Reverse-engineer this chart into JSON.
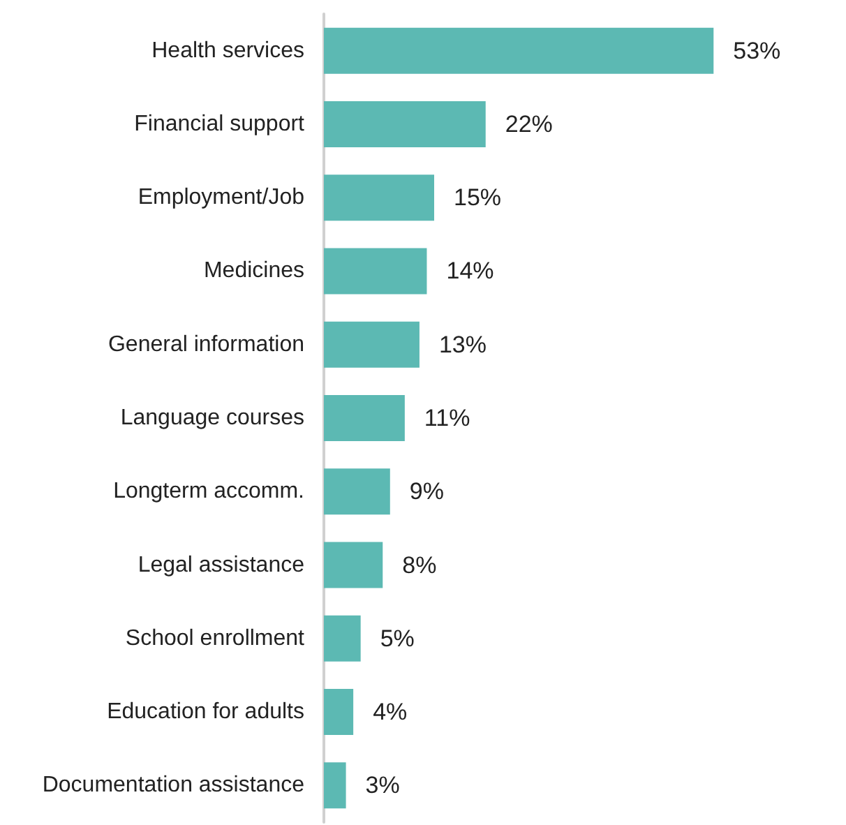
{
  "chart_data": {
    "type": "bar",
    "orientation": "horizontal",
    "categories": [
      "Health services",
      "Financial support",
      "Employment/Job",
      "Medicines",
      "General information",
      "Language courses",
      "Longterm accomm.",
      "Legal assistance",
      "School enrollment",
      "Education for adults",
      "Documentation assistance"
    ],
    "values": [
      53,
      22,
      15,
      14,
      13,
      11,
      9,
      8,
      5,
      4,
      3
    ],
    "value_labels": [
      "53%",
      "22%",
      "15%",
      "14%",
      "13%",
      "11%",
      "9%",
      "8%",
      "5%",
      "4%",
      "3%"
    ],
    "color": "#5cb9b3"
  }
}
